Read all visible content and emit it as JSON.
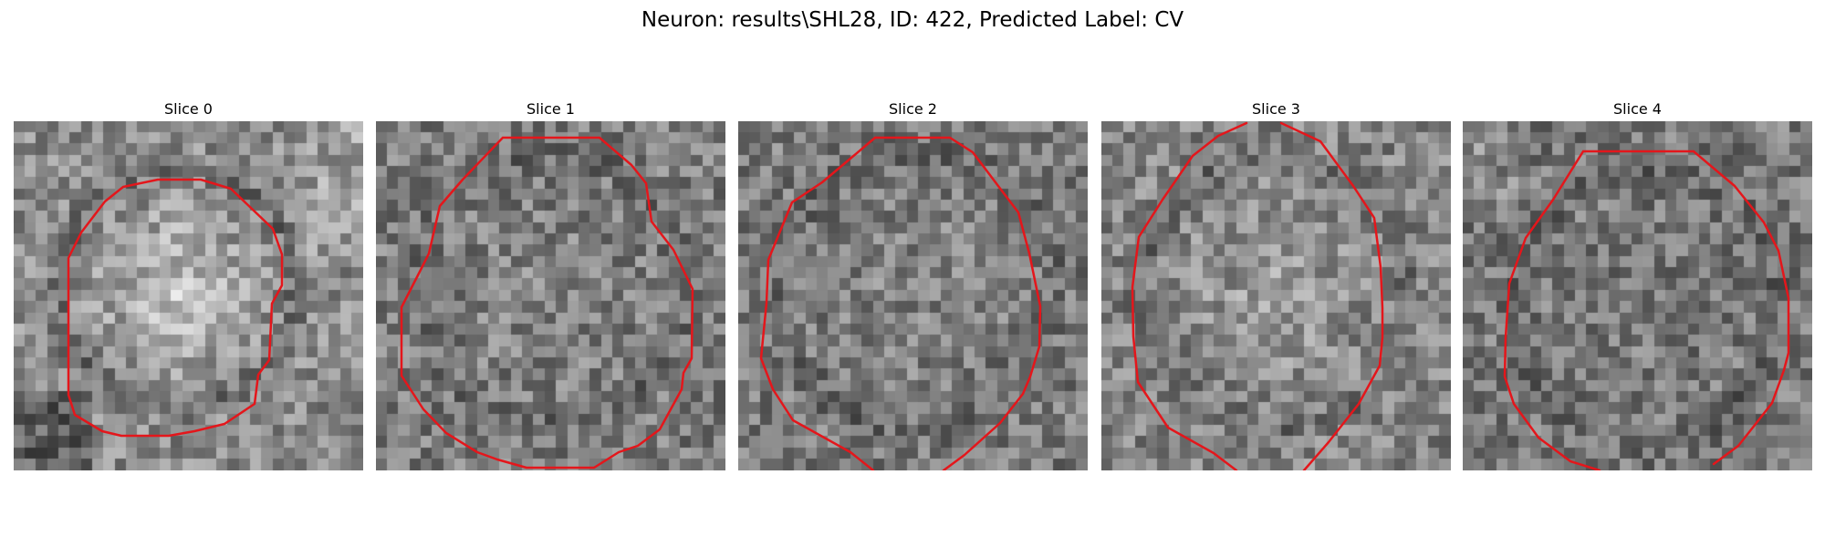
{
  "figure": {
    "title": "Neuron: results\\SHL28, ID: 422, Predicted Label: CV"
  },
  "panels": [
    {
      "title": "Slice 0"
    },
    {
      "title": "Slice 1"
    },
    {
      "title": "Slice 2"
    },
    {
      "title": "Slice 3"
    },
    {
      "title": "Slice 4"
    }
  ],
  "colors": {
    "contour": "#e4161b",
    "background": "#ffffff"
  }
}
